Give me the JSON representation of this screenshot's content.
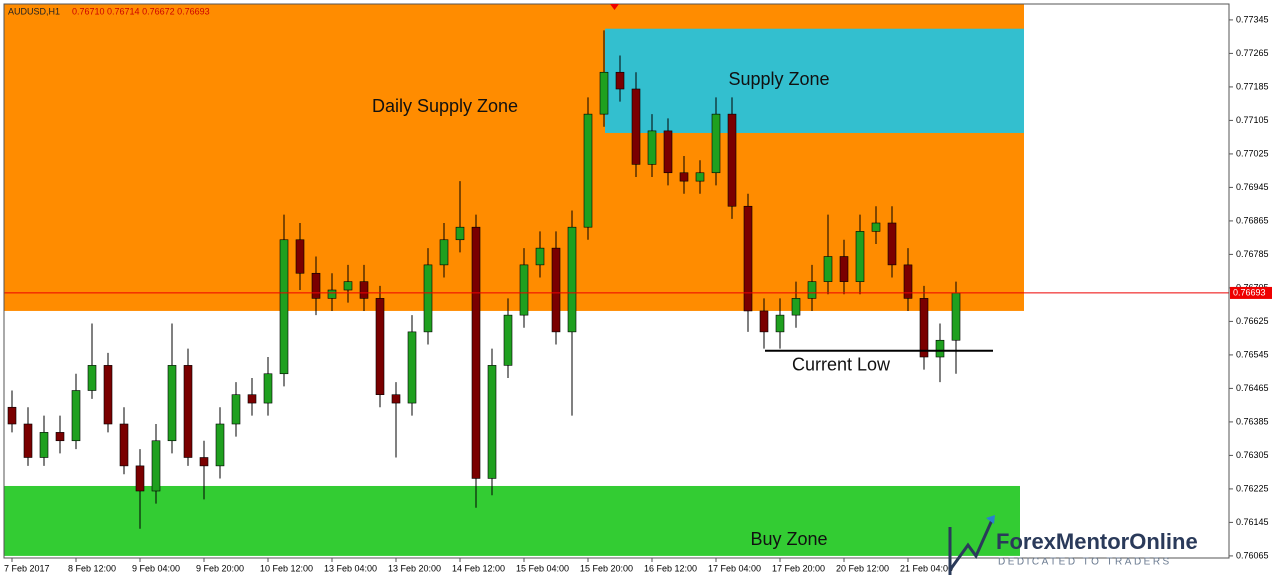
{
  "chart_data": {
    "type": "candlestick",
    "title": "AUDUSD,H1",
    "header_prices": "0.76710 0.76714 0.76672 0.76693",
    "categories": [
      "7 Feb 2017",
      null,
      null,
      null,
      "8 Feb 12:00",
      null,
      null,
      null,
      "9 Feb 04:00",
      null,
      null,
      null,
      "9 Feb 20:00",
      null,
      null,
      null,
      "10 Feb 12:00",
      null,
      null,
      null,
      "13 Feb 04:00",
      null,
      null,
      null,
      "13 Feb 20:00",
      null,
      null,
      null,
      "14 Feb 12:00",
      null,
      null,
      null,
      "15 Feb 04:00",
      null,
      null,
      null,
      "15 Feb 20:00",
      null,
      null,
      null,
      "16 Feb 12:00",
      null,
      null,
      null,
      "17 Feb 04:00",
      null,
      null,
      null,
      "17 Feb 20:00",
      null,
      null,
      null,
      "20 Feb 12:00",
      null,
      null,
      null,
      "21 Feb 04:00",
      null,
      null,
      null
    ],
    "open": [
      0.7642,
      0.7638,
      0.763,
      0.7636,
      0.7634,
      0.7646,
      0.7652,
      0.7638,
      0.7628,
      0.7622,
      0.7634,
      0.7652,
      0.763,
      0.7628,
      0.7638,
      0.7645,
      0.7643,
      0.765,
      0.7682,
      0.7674,
      0.7668,
      0.767,
      0.7672,
      0.7668,
      0.7645,
      0.7643,
      0.766,
      0.7676,
      0.7682,
      0.7685,
      0.7625,
      0.7652,
      0.7664,
      0.7676,
      0.768,
      0.766,
      0.7685,
      0.7712,
      0.7722,
      0.7718,
      0.77,
      0.7708,
      0.7698,
      0.7696,
      0.7698,
      0.7712,
      0.769,
      0.7665,
      0.766,
      0.7664,
      0.7668,
      0.7672,
      0.7678,
      0.7672,
      0.7684,
      0.7686,
      0.7676,
      0.7668,
      0.7654,
      0.7658
    ],
    "high": [
      0.7646,
      0.7642,
      0.764,
      0.764,
      0.765,
      0.7662,
      0.7655,
      0.7642,
      0.7632,
      0.7638,
      0.7662,
      0.7656,
      0.7634,
      0.7642,
      0.7648,
      0.7649,
      0.7654,
      0.7688,
      0.7686,
      0.7678,
      0.7674,
      0.7676,
      0.7676,
      0.7671,
      0.7648,
      0.7664,
      0.768,
      0.7686,
      0.7696,
      0.7688,
      0.7656,
      0.7668,
      0.768,
      0.7684,
      0.7684,
      0.7689,
      0.7716,
      0.7732,
      0.7726,
      0.7722,
      0.7712,
      0.7711,
      0.7702,
      0.7701,
      0.7716,
      0.7716,
      0.7693,
      0.7668,
      0.7668,
      0.7672,
      0.7676,
      0.7688,
      0.7682,
      0.7688,
      0.769,
      0.769,
      0.768,
      0.7671,
      0.7662,
      0.7672
    ],
    "low": [
      0.7636,
      0.7628,
      0.7628,
      0.7631,
      0.7632,
      0.7644,
      0.7636,
      0.7626,
      0.7613,
      0.7619,
      0.7631,
      0.7628,
      0.762,
      0.7625,
      0.7635,
      0.764,
      0.764,
      0.7647,
      0.767,
      0.7664,
      0.7665,
      0.7667,
      0.7665,
      0.7642,
      0.763,
      0.764,
      0.7657,
      0.7673,
      0.7679,
      0.7618,
      0.7621,
      0.7649,
      0.7661,
      0.7673,
      0.7657,
      0.764,
      0.7682,
      0.7709,
      0.7715,
      0.7697,
      0.7697,
      0.7695,
      0.7693,
      0.7693,
      0.7695,
      0.7687,
      0.766,
      0.7656,
      0.7656,
      0.7661,
      0.7665,
      0.7669,
      0.7669,
      0.7669,
      0.7681,
      0.7673,
      0.7665,
      0.7651,
      0.7648,
      0.765
    ],
    "close": [
      0.7638,
      0.763,
      0.7636,
      0.7634,
      0.7646,
      0.7652,
      0.7638,
      0.7628,
      0.7622,
      0.7634,
      0.7652,
      0.763,
      0.7628,
      0.7638,
      0.7645,
      0.7643,
      0.765,
      0.7682,
      0.7674,
      0.7668,
      0.767,
      0.7672,
      0.7668,
      0.7645,
      0.7643,
      0.766,
      0.7676,
      0.7682,
      0.7685,
      0.7625,
      0.7652,
      0.7664,
      0.7676,
      0.768,
      0.766,
      0.7685,
      0.7712,
      0.7722,
      0.7718,
      0.77,
      0.7708,
      0.7698,
      0.7696,
      0.7698,
      0.7712,
      0.769,
      0.7665,
      0.766,
      0.7664,
      0.7668,
      0.7672,
      0.7678,
      0.7672,
      0.7684,
      0.7686,
      0.7676,
      0.7668,
      0.7654,
      0.7658,
      0.76693
    ],
    "up_color": "#1fa01f",
    "down_color": "#7a0000",
    "ylim": [
      0.7606,
      0.77383
    ],
    "yticks": [
      0.77345,
      0.77265,
      0.77185,
      0.77105,
      0.77025,
      0.76945,
      0.76865,
      0.76785,
      0.76705,
      0.76625,
      0.76545,
      0.76465,
      0.76385,
      0.76305,
      0.76225,
      0.76145,
      0.76065
    ],
    "current_price": 0.76693,
    "zones": [
      {
        "label": "Daily Supply Zone",
        "from": 0.7665,
        "to": 0.77383,
        "color": "#ff8c00"
      },
      {
        "label": "Supply Zone",
        "from": 0.77075,
        "to": 0.77324,
        "color": "#33bfcf"
      },
      {
        "label": "Buy Zone",
        "from": 0.76065,
        "to": 0.76232,
        "color": "#33cc33"
      }
    ],
    "current_low": {
      "label": "Current Low",
      "price": 0.76555
    },
    "logo": {
      "name": "ForexMentorOnline",
      "tagline": "DEDICATED TO TRADERS"
    }
  }
}
